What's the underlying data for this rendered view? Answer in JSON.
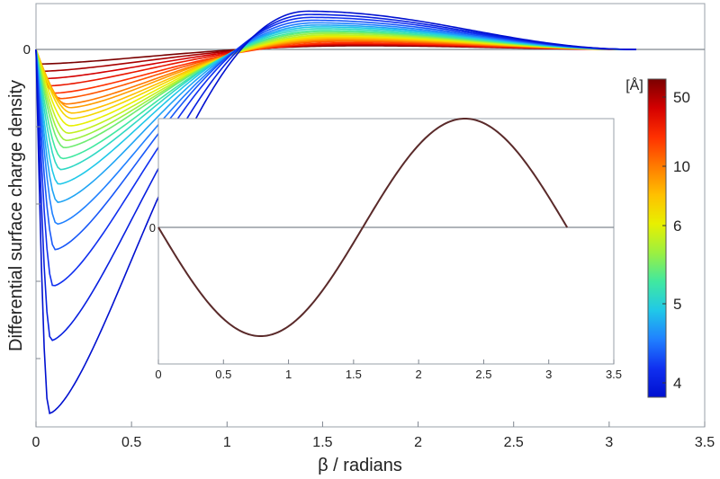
{
  "chart_data": [
    {
      "type": "line",
      "title": "",
      "xlabel": "β / radians",
      "ylabel": "Differential surface charge density",
      "xlim": [
        0,
        3.5
      ],
      "xticks": [
        "0",
        "0.5",
        "1",
        "1.5",
        "2",
        "2.5",
        "3",
        "3.5"
      ],
      "yzero_label": "0",
      "x_end": 3.1416,
      "grid": false,
      "legend": "colorbar-right",
      "colorbar": {
        "title": "[Å]",
        "labels": [
          "50",
          "10",
          "6",
          "5",
          "4"
        ],
        "colors": [
          "#7a0000",
          "#d40000",
          "#ff3000",
          "#ff7a00",
          "#ffc000",
          "#e8f000",
          "#9cf040",
          "#40e8a0",
          "#20c8e8",
          "#2080ff",
          "#1030f0",
          "#0010d0"
        ]
      },
      "series_shape": [
        {
          "x_min": 0.02,
          "depth": 0.04,
          "x_max": 1.7,
          "peak": 0.01
        },
        {
          "x_min": 0.03,
          "depth": 0.06,
          "x_max": 1.68,
          "peak": 0.012
        },
        {
          "x_min": 0.05,
          "depth": 0.08,
          "x_max": 1.66,
          "peak": 0.014
        },
        {
          "x_min": 0.07,
          "depth": 0.1,
          "x_max": 1.64,
          "peak": 0.016
        },
        {
          "x_min": 0.1,
          "depth": 0.12,
          "x_max": 1.62,
          "peak": 0.018
        },
        {
          "x_min": 0.13,
          "depth": 0.135,
          "x_max": 1.6,
          "peak": 0.022
        },
        {
          "x_min": 0.16,
          "depth": 0.15,
          "x_max": 1.58,
          "peak": 0.025
        },
        {
          "x_min": 0.18,
          "depth": 0.16,
          "x_max": 1.57,
          "peak": 0.028
        },
        {
          "x_min": 0.19,
          "depth": 0.175,
          "x_max": 1.56,
          "peak": 0.031
        },
        {
          "x_min": 0.19,
          "depth": 0.19,
          "x_max": 1.55,
          "peak": 0.034
        },
        {
          "x_min": 0.18,
          "depth": 0.21,
          "x_max": 1.54,
          "peak": 0.037
        },
        {
          "x_min": 0.17,
          "depth": 0.23,
          "x_max": 1.53,
          "peak": 0.04
        },
        {
          "x_min": 0.16,
          "depth": 0.25,
          "x_max": 1.52,
          "peak": 0.044
        },
        {
          "x_min": 0.15,
          "depth": 0.27,
          "x_max": 1.51,
          "peak": 0.048
        },
        {
          "x_min": 0.14,
          "depth": 0.3,
          "x_max": 1.5,
          "peak": 0.052
        },
        {
          "x_min": 0.13,
          "depth": 0.33,
          "x_max": 1.49,
          "peak": 0.057
        },
        {
          "x_min": 0.12,
          "depth": 0.37,
          "x_max": 1.48,
          "peak": 0.062
        },
        {
          "x_min": 0.115,
          "depth": 0.42,
          "x_max": 1.47,
          "peak": 0.067
        },
        {
          "x_min": 0.11,
          "depth": 0.48,
          "x_max": 1.46,
          "peak": 0.073
        },
        {
          "x_min": 0.1,
          "depth": 0.55,
          "x_max": 1.45,
          "peak": 0.08
        },
        {
          "x_min": 0.09,
          "depth": 0.65,
          "x_max": 1.44,
          "peak": 0.088
        },
        {
          "x_min": 0.08,
          "depth": 0.8,
          "x_max": 1.43,
          "peak": 0.096
        },
        {
          "x_min": 0.07,
          "depth": 1.0,
          "x_max": 1.42,
          "peak": 0.105
        }
      ]
    },
    {
      "type": "line",
      "title": "",
      "xlim": [
        0,
        3.5
      ],
      "xticks": [
        "0",
        "0.5",
        "1",
        "1.5",
        "2",
        "2.5",
        "3",
        "3.5"
      ],
      "yzero_label": "0",
      "curve": "sin(2x - π)",
      "x_end": 3.1416,
      "color": "#5a2a2a"
    }
  ]
}
